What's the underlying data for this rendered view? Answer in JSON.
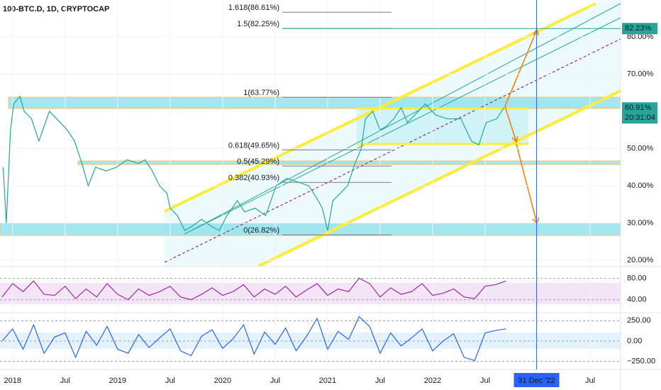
{
  "chart_data": [
    {
      "type": "line",
      "title": "100-BTC.D, 1D, CRYPTOCAP",
      "color": "#26a69a",
      "x": [
        2017.91,
        2017.94,
        2017.98,
        2018.01,
        2018.07,
        2018.11,
        2018.18,
        2018.25,
        2018.35,
        2018.42,
        2018.52,
        2018.59,
        2018.66,
        2018.72,
        2018.79,
        2018.89,
        2018.99,
        2019.09,
        2019.2,
        2019.26,
        2019.33,
        2019.4,
        2019.47,
        2019.5,
        2019.57,
        2019.64,
        2019.7,
        2019.8,
        2019.9,
        2019.97,
        2020.04,
        2020.14,
        2020.21,
        2020.31,
        2020.41,
        2020.51,
        2020.61,
        2020.72,
        2020.82,
        2020.89,
        2020.95,
        2021.0,
        2021.05,
        2021.12,
        2021.19,
        2021.26,
        2021.32,
        2021.36,
        2021.43,
        2021.5,
        2021.56,
        2021.63,
        2021.7,
        2021.76,
        2021.83,
        2021.93,
        2022.03,
        2022.14,
        2022.27,
        2022.37,
        2022.44,
        2022.51,
        2022.61,
        2022.68
      ],
      "values": [
        45,
        30,
        55,
        62,
        64,
        60,
        58,
        52,
        60,
        58,
        55,
        52,
        46,
        40,
        45,
        44,
        45,
        47,
        46,
        47,
        44,
        40,
        38,
        34,
        32,
        28,
        29,
        31,
        29,
        28,
        32,
        36,
        33,
        34,
        32,
        40,
        42,
        41,
        40,
        37,
        34,
        28,
        36,
        38,
        40,
        46,
        50,
        58,
        60,
        55,
        56,
        58,
        61,
        57,
        59,
        62,
        59,
        58,
        58,
        52,
        51,
        57,
        58,
        61
      ],
      "xlim": [
        2017.88,
        2023.79
      ],
      "ylim": [
        18.5,
        89.9
      ],
      "xticks": [
        {
          "value": 2018,
          "label": "2018"
        },
        {
          "value": 2018.5,
          "label": "Jul"
        },
        {
          "value": 2019,
          "label": "2019"
        },
        {
          "value": 2019.5,
          "label": "Jul"
        },
        {
          "value": 2020,
          "label": "2020"
        },
        {
          "value": 2020.5,
          "label": "Jul"
        },
        {
          "value": 2021,
          "label": "2021"
        },
        {
          "value": 2021.5,
          "label": "Jul"
        },
        {
          "value": 2022,
          "label": "2022"
        },
        {
          "value": 2022.5,
          "label": "Jul"
        },
        {
          "value": 2023.5,
          "label": "Jul"
        }
      ],
      "yticks": [
        {
          "value": 80,
          "label": "80.00%"
        },
        {
          "value": 70,
          "label": "70.00%"
        },
        {
          "value": 50,
          "label": "50.00%"
        },
        {
          "value": 40,
          "label": "40.00%"
        },
        {
          "value": 30,
          "label": "30.00%"
        },
        {
          "value": 20,
          "label": "20.00%"
        }
      ],
      "fib_levels": [
        {
          "value": 86.61,
          "label": "1.618(86.61%)"
        },
        {
          "value": 82.25,
          "label": "1.5(82.25%)"
        },
        {
          "value": 63.77,
          "label": "1(63.77%)"
        },
        {
          "value": 49.65,
          "label": "0.618(49.65%)"
        },
        {
          "value": 45.29,
          "label": "0.5(45.29%)"
        },
        {
          "value": 40.93,
          "label": "0.382(40.93%)"
        },
        {
          "value": 26.82,
          "label": "0(26.82%)"
        }
      ],
      "target_label": {
        "value": 82.23,
        "label": "82.23%"
      },
      "last_label": {
        "value": 60.91,
        "label": "60.91%"
      },
      "countdown": "20:31:04",
      "cursor": {
        "value": 2022.99,
        "label": "31 Dec '22"
      }
    },
    {
      "type": "line",
      "color": "#9c27b0",
      "x": [
        2017.9,
        2018.0,
        2018.1,
        2018.2,
        2018.3,
        2018.4,
        2018.5,
        2018.6,
        2018.7,
        2018.8,
        2018.9,
        2019.0,
        2019.1,
        2019.2,
        2019.3,
        2019.4,
        2019.5,
        2019.6,
        2019.7,
        2019.8,
        2019.9,
        2020.0,
        2020.1,
        2020.2,
        2020.3,
        2020.4,
        2020.5,
        2020.6,
        2020.7,
        2020.8,
        2020.9,
        2021.0,
        2021.1,
        2021.2,
        2021.3,
        2021.4,
        2021.5,
        2021.6,
        2021.7,
        2021.8,
        2021.9,
        2022.0,
        2022.1,
        2022.2,
        2022.3,
        2022.4,
        2022.5,
        2022.6,
        2022.7
      ],
      "values": [
        45,
        70,
        55,
        75,
        50,
        48,
        65,
        42,
        60,
        45,
        70,
        50,
        40,
        60,
        48,
        55,
        65,
        45,
        40,
        50,
        62,
        48,
        55,
        68,
        45,
        60,
        50,
        65,
        45,
        58,
        70,
        48,
        60,
        55,
        80,
        70,
        45,
        62,
        50,
        55,
        70,
        48,
        52,
        60,
        45,
        42,
        65,
        68,
        75
      ],
      "ylim": [
        17,
        99
      ],
      "yticks": [
        {
          "value": 80,
          "label": "80.00"
        },
        {
          "value": 40,
          "label": "40.00"
        }
      ]
    },
    {
      "type": "line",
      "color": "#2962ff",
      "x": [
        2017.9,
        2018.0,
        2018.1,
        2018.2,
        2018.3,
        2018.4,
        2018.5,
        2018.6,
        2018.7,
        2018.8,
        2018.9,
        2019.0,
        2019.1,
        2019.2,
        2019.3,
        2019.4,
        2019.5,
        2019.6,
        2019.7,
        2019.8,
        2019.9,
        2020.0,
        2020.1,
        2020.2,
        2020.3,
        2020.4,
        2020.5,
        2020.6,
        2020.7,
        2020.8,
        2020.9,
        2021.0,
        2021.1,
        2021.2,
        2021.3,
        2021.4,
        2021.5,
        2021.6,
        2021.7,
        2021.8,
        2021.9,
        2022.0,
        2022.1,
        2022.2,
        2022.3,
        2022.4,
        2022.5,
        2022.6,
        2022.7
      ],
      "values": [
        0,
        150,
        -100,
        200,
        -150,
        50,
        100,
        -200,
        120,
        -50,
        180,
        -100,
        -150,
        80,
        -80,
        40,
        150,
        -120,
        -180,
        60,
        140,
        -90,
        30,
        200,
        -160,
        110,
        -40,
        160,
        -120,
        60,
        280,
        -100,
        120,
        20,
        300,
        180,
        -150,
        100,
        -60,
        40,
        150,
        -120,
        0,
        90,
        -200,
        -240,
        100,
        130,
        150
      ],
      "ylim": [
        -340,
        340
      ],
      "yticks": [
        {
          "value": 250,
          "label": "250.00"
        },
        {
          "value": 0,
          "label": "0.00"
        },
        {
          "value": -250,
          "label": "−250.00"
        }
      ]
    }
  ]
}
